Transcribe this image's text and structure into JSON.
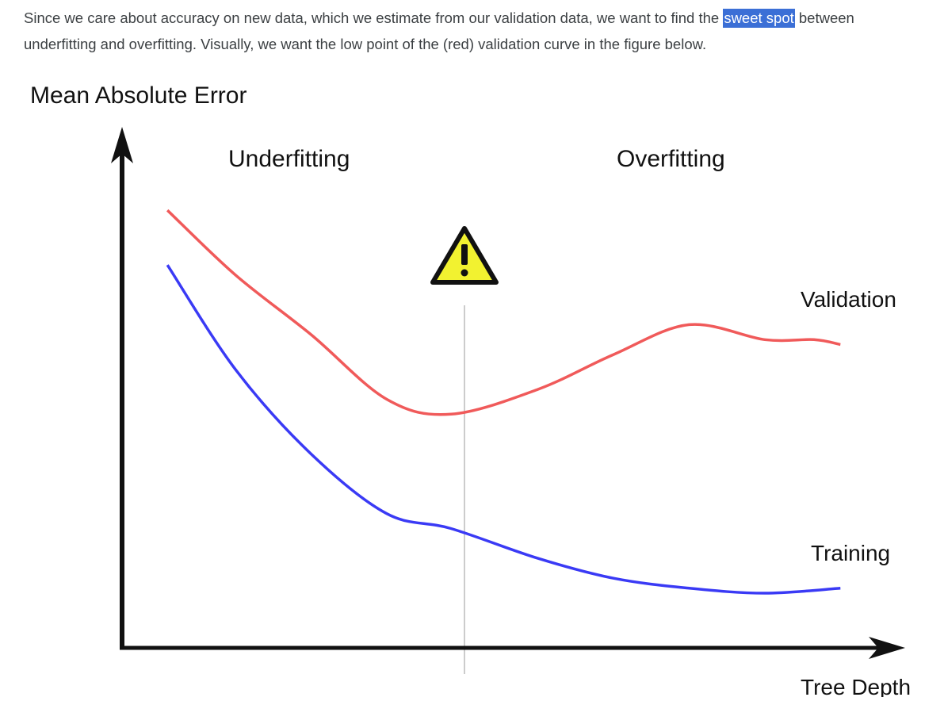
{
  "paragraph": {
    "text_before": "Since we care about accuracy on new data, which we estimate from our validation data, we want to find the ",
    "highlight": "sweet spot",
    "text_after": " between underfitting and overfitting. Visually, we want the low point of the (red) validation curve in the figure below."
  },
  "figure": {
    "y_axis_label": "Mean Absolute Error",
    "x_axis_label": "Tree Depth",
    "region_left_label": "Underfitting",
    "region_right_label": "Overfitting",
    "warning_icon": "warning-triangle-icon",
    "colors": {
      "validation": "#f05a5a",
      "training": "#3a3af5",
      "warning_fill": "#f2f230",
      "axis": "#111111",
      "divider": "#cccccc"
    }
  },
  "chart_data": {
    "type": "line",
    "title": "",
    "xlabel": "Tree Depth",
    "ylabel": "Mean Absolute Error",
    "series": [
      {
        "name": "Validation",
        "x": [
          0.06,
          0.15,
          0.25,
          0.35,
          0.435,
          0.55,
          0.65,
          0.75,
          0.85,
          0.915,
          0.95
        ],
        "values": [
          0.88,
          0.75,
          0.63,
          0.5,
          0.47,
          0.52,
          0.59,
          0.65,
          0.62,
          0.62,
          0.61
        ]
      },
      {
        "name": "Training",
        "x": [
          0.06,
          0.15,
          0.25,
          0.35,
          0.435,
          0.55,
          0.65,
          0.75,
          0.85,
          0.95
        ],
        "values": [
          0.77,
          0.56,
          0.39,
          0.27,
          0.24,
          0.18,
          0.14,
          0.12,
          0.11,
          0.12
        ]
      }
    ],
    "annotations": [
      "Underfitting",
      "Overfitting"
    ]
  }
}
